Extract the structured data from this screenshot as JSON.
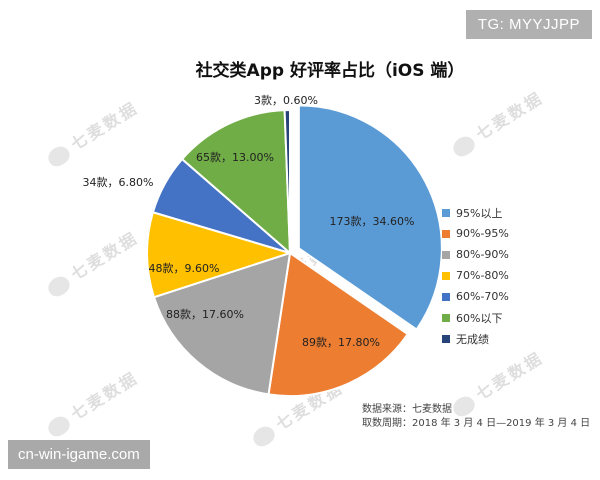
{
  "header": {
    "tg_label": "TG: MYYJJPP"
  },
  "watermark": {
    "text": "七麦数据"
  },
  "banner": {
    "text": "cn-win-igame.com"
  },
  "chart_data": {
    "type": "pie",
    "title": "社交类App 好评率占比（iOS 端）",
    "slices": [
      {
        "name": "95%以上",
        "count": 173,
        "percent": 34.6,
        "label": "173款，34.60%",
        "color": "#5b9bd5"
      },
      {
        "name": "90%-95%",
        "count": 89,
        "percent": 17.8,
        "label": "89款，17.80%",
        "color": "#ed7d31"
      },
      {
        "name": "80%-90%",
        "count": 88,
        "percent": 17.6,
        "label": "88款，17.60%",
        "color": "#a5a5a5"
      },
      {
        "name": "70%-80%",
        "count": 48,
        "percent": 9.6,
        "label": "48款，9.60%",
        "color": "#ffc000"
      },
      {
        "name": "60%-70%",
        "count": 34,
        "percent": 6.8,
        "label": "34款，6.80%",
        "color": "#4472c4"
      },
      {
        "name": "60%以下",
        "count": 65,
        "percent": 13.0,
        "label": "65款，13.00%",
        "color": "#70ad47"
      },
      {
        "name": "无成绩",
        "count": 3,
        "percent": 0.6,
        "label": "3款，0.60%",
        "color": "#264478"
      }
    ],
    "legend_position": "right",
    "exploded_slice": "95%以上"
  },
  "source": {
    "line1": "数据来源：七麦数据",
    "line2": "取数周期：2018 年 3 月 4 日—2019 年 3 月 4 日"
  }
}
